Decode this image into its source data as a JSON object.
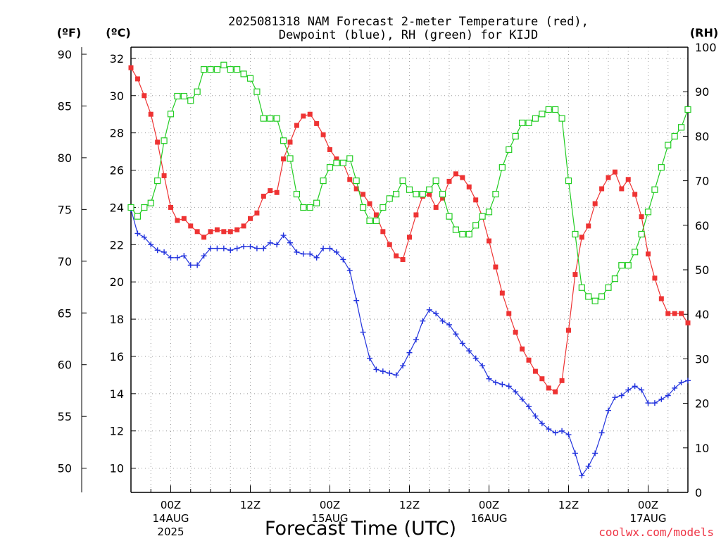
{
  "chart_data": {
    "type": "line",
    "title_line1": "2025081318 NAM Forecast 2-meter Temperature (red),",
    "title_line2": "Dewpoint (blue), RH (green) for KIJD",
    "xlabel": "Forecast Time (UTC)",
    "left_unit_f": "(ºF)",
    "left_unit_c": "(ºC)",
    "right_unit": "(RH)",
    "watermark": "coolwx.com/models",
    "x_unit": "forecast hour",
    "xlim": [
      0,
      84
    ],
    "celsius_axis": {
      "ylim": [
        8.7,
        32.6
      ],
      "ticks": [
        10,
        12,
        14,
        16,
        18,
        20,
        22,
        24,
        26,
        28,
        30,
        32
      ]
    },
    "fahrenheit_axis": {
      "ylim": [
        47.66,
        90.68
      ],
      "ticks": [
        50,
        55,
        60,
        65,
        70,
        75,
        80,
        85,
        90
      ]
    },
    "rh_axis": {
      "ylim": [
        0,
        100
      ],
      "ticks": [
        0,
        10,
        20,
        30,
        40,
        50,
        60,
        70,
        80,
        90,
        100
      ]
    },
    "x_ticks": [
      {
        "x": 6,
        "time": "00Z",
        "date": "14AUG",
        "year": "2025"
      },
      {
        "x": 18,
        "time": "12Z",
        "date": "",
        "year": ""
      },
      {
        "x": 30,
        "time": "00Z",
        "date": "15AUG",
        "year": ""
      },
      {
        "x": 42,
        "time": "12Z",
        "date": "",
        "year": ""
      },
      {
        "x": 54,
        "time": "00Z",
        "date": "16AUG",
        "year": ""
      },
      {
        "x": 66,
        "time": "12Z",
        "date": "",
        "year": ""
      },
      {
        "x": 78,
        "time": "00Z",
        "date": "17AUG",
        "year": ""
      }
    ],
    "grid": true,
    "series": [
      {
        "name": "Temperature",
        "color": "#ee3333",
        "marker": "filled-square",
        "axis": "celsius",
        "x": [
          0,
          1,
          2,
          3,
          4,
          5,
          6,
          7,
          8,
          9,
          10,
          11,
          12,
          13,
          14,
          15,
          16,
          17,
          18,
          19,
          20,
          21,
          22,
          23,
          24,
          25,
          26,
          27,
          28,
          29,
          30,
          31,
          32,
          33,
          34,
          35,
          36,
          37,
          38,
          39,
          40,
          41,
          42,
          43,
          44,
          45,
          46,
          47,
          48,
          49,
          50,
          51,
          52,
          53,
          54,
          55,
          56,
          57,
          58,
          59,
          60,
          61,
          62,
          63,
          64,
          65,
          66,
          67,
          68,
          69,
          70,
          71,
          72,
          73,
          74,
          75,
          76,
          77,
          78,
          79,
          80,
          81,
          82,
          83,
          84
        ],
        "values": [
          31.5,
          30.9,
          30.0,
          29.0,
          27.5,
          25.7,
          24.0,
          23.3,
          23.4,
          23.0,
          22.7,
          22.4,
          22.7,
          22.8,
          22.7,
          22.7,
          22.8,
          23.0,
          23.4,
          23.7,
          24.6,
          24.9,
          24.8,
          26.6,
          27.5,
          28.4,
          28.9,
          29.0,
          28.5,
          27.9,
          27.1,
          26.6,
          26.4,
          25.5,
          25.0,
          24.7,
          24.2,
          23.6,
          22.7,
          22.0,
          21.4,
          21.2,
          22.4,
          23.6,
          24.6,
          24.7,
          24.0,
          24.5,
          25.4,
          25.8,
          25.6,
          25.1,
          24.4,
          23.5,
          22.2,
          20.8,
          19.4,
          18.3,
          17.3,
          16.4,
          15.8,
          15.2,
          14.8,
          14.3,
          14.1,
          14.7,
          17.4,
          20.4,
          22.4,
          23.0,
          24.2,
          25.0,
          25.6,
          25.9,
          25.0,
          25.5,
          24.7,
          23.5,
          21.5,
          20.2,
          19.1,
          18.3,
          18.3,
          18.3,
          17.8
        ]
      },
      {
        "name": "Dewpoint",
        "color": "#2233dd",
        "marker": "plus",
        "axis": "celsius",
        "x": [
          0,
          1,
          2,
          3,
          4,
          5,
          6,
          7,
          8,
          9,
          10,
          11,
          12,
          13,
          14,
          15,
          16,
          17,
          18,
          19,
          20,
          21,
          22,
          23,
          24,
          25,
          26,
          27,
          28,
          29,
          30,
          31,
          32,
          33,
          34,
          35,
          36,
          37,
          38,
          39,
          40,
          41,
          42,
          43,
          44,
          45,
          46,
          47,
          48,
          49,
          50,
          51,
          52,
          53,
          54,
          55,
          56,
          57,
          58,
          59,
          60,
          61,
          62,
          63,
          64,
          65,
          66,
          67,
          68,
          69,
          70,
          71,
          72,
          73,
          74,
          75,
          76,
          77,
          78,
          79,
          80,
          81,
          82,
          83,
          84
        ],
        "values": [
          23.9,
          22.6,
          22.4,
          22.0,
          21.7,
          21.6,
          21.3,
          21.3,
          21.4,
          20.9,
          20.9,
          21.4,
          21.8,
          21.8,
          21.8,
          21.7,
          21.8,
          21.9,
          21.9,
          21.8,
          21.8,
          22.1,
          22.0,
          22.5,
          22.1,
          21.6,
          21.5,
          21.5,
          21.3,
          21.8,
          21.8,
          21.6,
          21.2,
          20.6,
          19.0,
          17.3,
          15.9,
          15.3,
          15.2,
          15.1,
          15.0,
          15.5,
          16.2,
          16.9,
          17.9,
          18.5,
          18.3,
          17.9,
          17.7,
          17.2,
          16.7,
          16.3,
          15.9,
          15.5,
          14.8,
          14.6,
          14.5,
          14.4,
          14.1,
          13.7,
          13.3,
          12.8,
          12.4,
          12.1,
          11.9,
          12.0,
          11.8,
          10.8,
          9.6,
          10.1,
          10.8,
          11.9,
          13.1,
          13.8,
          13.9,
          14.2,
          14.4,
          14.2,
          13.5,
          13.5,
          13.7,
          13.9,
          14.3,
          14.6,
          14.7
        ]
      },
      {
        "name": "RH",
        "color": "#22cc22",
        "marker": "open-square",
        "axis": "rh",
        "x": [
          0,
          1,
          2,
          3,
          4,
          5,
          6,
          7,
          8,
          9,
          10,
          11,
          12,
          13,
          14,
          15,
          16,
          17,
          18,
          19,
          20,
          21,
          22,
          23,
          24,
          25,
          26,
          27,
          28,
          29,
          30,
          31,
          32,
          33,
          34,
          35,
          36,
          37,
          38,
          39,
          40,
          41,
          42,
          43,
          44,
          45,
          46,
          47,
          48,
          49,
          50,
          51,
          52,
          53,
          54,
          55,
          56,
          57,
          58,
          59,
          60,
          61,
          62,
          63,
          64,
          65,
          66,
          67,
          68,
          69,
          70,
          71,
          72,
          73,
          74,
          75,
          76,
          77,
          78,
          79,
          80,
          81,
          82,
          83,
          84
        ],
        "values": [
          64,
          62,
          64,
          65,
          70,
          79,
          85,
          89,
          89,
          88,
          90,
          95,
          95,
          95,
          96,
          95,
          95,
          94,
          93,
          90,
          84,
          84,
          84,
          79,
          75,
          67,
          64,
          64,
          65,
          70,
          73,
          74,
          74,
          75,
          70,
          64,
          61,
          61,
          64,
          66,
          67,
          70,
          68,
          67,
          67,
          68,
          70,
          67,
          62,
          59,
          58,
          58,
          60,
          62,
          63,
          67,
          73,
          77,
          80,
          83,
          83,
          84,
          85,
          86,
          86,
          84,
          70,
          58,
          46,
          44,
          43,
          44,
          46,
          48,
          51,
          51,
          54,
          58,
          63,
          68,
          73,
          78,
          80,
          82,
          86
        ]
      }
    ]
  }
}
